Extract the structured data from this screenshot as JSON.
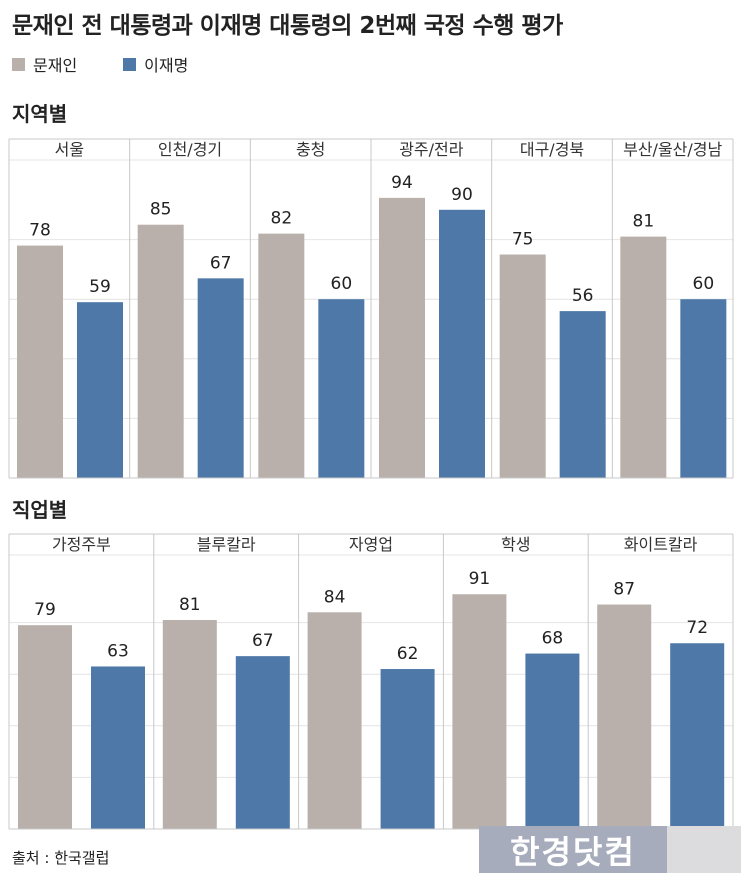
{
  "title": "문재인 전 대통령과 이재명 대통령의 2번째 국정 수행 평가",
  "legend": {
    "a_label": "문재인",
    "b_label": "이재명"
  },
  "colors": {
    "a": "#b9b0ab",
    "b": "#4d78a8",
    "grid": "#e4e4e4",
    "divider": "#c8c8c8"
  },
  "sections": [
    {
      "title": "지역별"
    },
    {
      "title": "직업별"
    }
  ],
  "source": "출처 : 한국갤럽",
  "watermark": "한경닷컴",
  "chart_data": [
    {
      "type": "bar",
      "title": "지역별",
      "categories": [
        "서울",
        "인천/경기",
        "충청",
        "광주/전라",
        "대구/경북",
        "부산/울산/경남"
      ],
      "series": [
        {
          "name": "문재인",
          "values": [
            78,
            85,
            82,
            94,
            75,
            81
          ]
        },
        {
          "name": "이재명",
          "values": [
            59,
            67,
            60,
            90,
            56,
            60
          ]
        }
      ],
      "ylim": [
        0,
        100
      ],
      "grid": true
    },
    {
      "type": "bar",
      "title": "직업별",
      "categories": [
        "가정주부",
        "블루칼라",
        "자영업",
        "학생",
        "화이트칼라"
      ],
      "series": [
        {
          "name": "문재인",
          "values": [
            79,
            81,
            84,
            91,
            87
          ]
        },
        {
          "name": "이재명",
          "values": [
            63,
            67,
            62,
            68,
            72
          ]
        }
      ],
      "ylim": [
        0,
        100
      ],
      "grid": true
    }
  ]
}
